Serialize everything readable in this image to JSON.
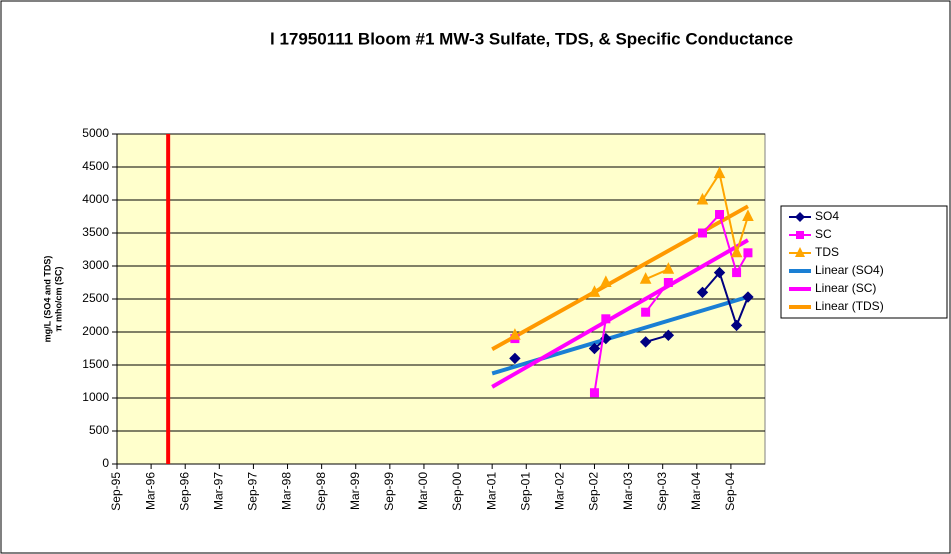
{
  "chart_data": {
    "type": "line",
    "title": "l  17950111  Bloom #1  MW-3  Sulfate, TDS, & Specific Conductance",
    "y_label": [
      "mg/L (SO4 and TDS)",
      "π mho/cm (SC)"
    ],
    "x": [
      "2001-07",
      "2002-03",
      "2002-09",
      "2002-11",
      "2003-02",
      "2003-06",
      "2003-10",
      "2004-01",
      "2004-04",
      "2004-07",
      "2004-10",
      "2004-12"
    ],
    "series": [
      {
        "name": "SO4",
        "color": "#000080",
        "marker": "diamond",
        "trend_name": "Linear (SO4)",
        "trend_color": "#1a7fd4",
        "values": [
          1600,
          null,
          1750,
          1900,
          null,
          1850,
          1950,
          null,
          2600,
          2900,
          2100,
          2530
        ]
      },
      {
        "name": "SC",
        "color": "#ff00ff",
        "marker": "square",
        "trend_name": "Linear (SC)",
        "trend_color": "#ff00ff",
        "values": [
          1900,
          null,
          1080,
          2200,
          null,
          2300,
          2750,
          null,
          3500,
          3780,
          2900,
          3200
        ]
      },
      {
        "name": "TDS",
        "color": "#ffa500",
        "marker": "triangle",
        "trend_name": "Linear (TDS)",
        "trend_color": "#ff9900",
        "values": [
          1950,
          null,
          2600,
          2750,
          null,
          2800,
          2950,
          null,
          4000,
          4400,
          3200,
          3750
        ]
      }
    ],
    "reference_line": {
      "x": "1996-06",
      "color": "#ff0000"
    },
    "xlim": [
      "1995-09",
      "2005-03"
    ],
    "xticks": [
      {
        "value": "1995-09",
        "label": "Sep-95"
      },
      {
        "value": "1996-03",
        "label": "Mar-96"
      },
      {
        "value": "1996-09",
        "label": "Sep-96"
      },
      {
        "value": "1997-03",
        "label": "Mar-97"
      },
      {
        "value": "1997-09",
        "label": "Sep-97"
      },
      {
        "value": "1998-03",
        "label": "Mar-98"
      },
      {
        "value": "1998-09",
        "label": "Sep-98"
      },
      {
        "value": "1999-03",
        "label": "Mar-99"
      },
      {
        "value": "1999-09",
        "label": "Sep-99"
      },
      {
        "value": "2000-03",
        "label": "Mar-00"
      },
      {
        "value": "2000-09",
        "label": "Sep-00"
      },
      {
        "value": "2001-03",
        "label": "Mar-01"
      },
      {
        "value": "2001-09",
        "label": "Sep-01"
      },
      {
        "value": "2002-03",
        "label": "Mar-02"
      },
      {
        "value": "2002-09",
        "label": "Sep-02"
      },
      {
        "value": "2003-03",
        "label": "Mar-03"
      },
      {
        "value": "2003-09",
        "label": "Sep-03"
      },
      {
        "value": "2004-03",
        "label": "Mar-04"
      },
      {
        "value": "2004-09",
        "label": "Sep-04"
      }
    ],
    "ylim": [
      0,
      5000
    ],
    "yticks": [
      0,
      500,
      1000,
      1500,
      2000,
      2500,
      3000,
      3500,
      4000,
      4500,
      5000
    ],
    "grid": true,
    "legend": "right"
  }
}
